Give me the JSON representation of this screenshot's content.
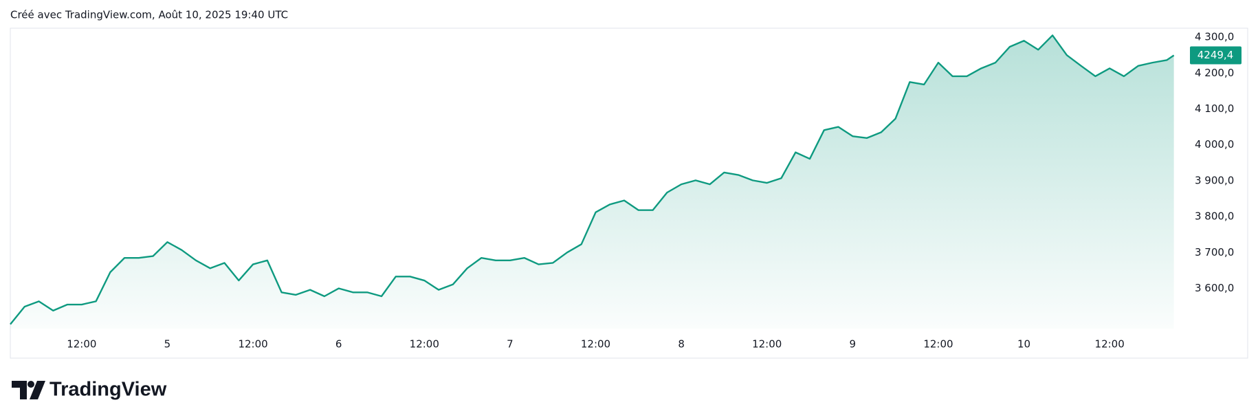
{
  "header": "Créé avec TradingView.com, Août 10, 2025 19:40 UTC",
  "logo": "TradingView",
  "chart_data": {
    "type": "area",
    "color": "#0e9a80",
    "x": [
      2,
      4,
      6,
      8,
      10,
      12,
      14,
      16,
      18,
      20,
      22,
      24,
      26,
      28,
      30,
      32,
      34,
      36,
      38,
      40,
      42,
      44,
      46,
      48,
      50,
      52,
      54,
      56,
      58,
      60,
      62,
      64,
      66,
      68,
      70,
      72,
      74,
      76,
      78,
      80,
      82,
      84,
      86,
      88,
      90,
      92,
      94,
      96,
      98,
      100,
      102,
      104,
      106,
      108,
      110,
      112,
      114,
      116,
      118,
      120,
      122,
      124,
      126,
      128,
      130,
      132,
      134,
      136,
      138,
      140,
      142,
      144,
      146,
      148,
      150,
      152,
      154,
      156,
      158,
      160,
      162,
      164,
      165
    ],
    "values": [
      3500,
      3549,
      3564,
      3538,
      3555,
      3555,
      3564,
      3645,
      3685,
      3685,
      3690,
      3729,
      3707,
      3678,
      3656,
      3671,
      3622,
      3667,
      3678,
      3589,
      3582,
      3596,
      3578,
      3600,
      3589,
      3589,
      3578,
      3633,
      3633,
      3622,
      3596,
      3611,
      3656,
      3685,
      3678,
      3678,
      3685,
      3667,
      3671,
      3700,
      3723,
      3812,
      3834,
      3845,
      3818,
      3818,
      3867,
      3890,
      3901,
      3890,
      3923,
      3916,
      3901,
      3894,
      3907,
      3979,
      3961,
      4041,
      4050,
      4024,
      4019,
      4035,
      4073,
      4175,
      4168,
      4229,
      4191,
      4191,
      4213,
      4229,
      4273,
      4290,
      4265,
      4305,
      4250,
      4220,
      4191,
      4213,
      4191,
      4220,
      4229,
      4236,
      4249.4
    ],
    "xlim": [
      2,
      166
    ],
    "xticks": [
      {
        "value": 12,
        "label": "12:00"
      },
      {
        "value": 24,
        "label": "5"
      },
      {
        "value": 36,
        "label": "12:00"
      },
      {
        "value": 48,
        "label": "6"
      },
      {
        "value": 60,
        "label": "12:00"
      },
      {
        "value": 72,
        "label": "7"
      },
      {
        "value": 84,
        "label": "12:00"
      },
      {
        "value": 96,
        "label": "8"
      },
      {
        "value": 108,
        "label": "12:00"
      },
      {
        "value": 120,
        "label": "9"
      },
      {
        "value": 132,
        "label": "12:00"
      },
      {
        "value": 144,
        "label": "10"
      },
      {
        "value": 156,
        "label": "12:00"
      }
    ],
    "ylim": [
      3488,
      4325
    ],
    "yticks": [
      {
        "value": 3600,
        "label": "3 600,0"
      },
      {
        "value": 3700,
        "label": "3 700,0"
      },
      {
        "value": 3800,
        "label": "3 800,0"
      },
      {
        "value": 3900,
        "label": "3 900,0"
      },
      {
        "value": 4000,
        "label": "4 000,0"
      },
      {
        "value": 4100,
        "label": "4 100,0"
      },
      {
        "value": 4200,
        "label": "4 200,0"
      },
      {
        "value": 4300,
        "label": "4 300,0"
      }
    ],
    "price_tag": {
      "value": 4249.4,
      "label": "4249,4"
    }
  }
}
